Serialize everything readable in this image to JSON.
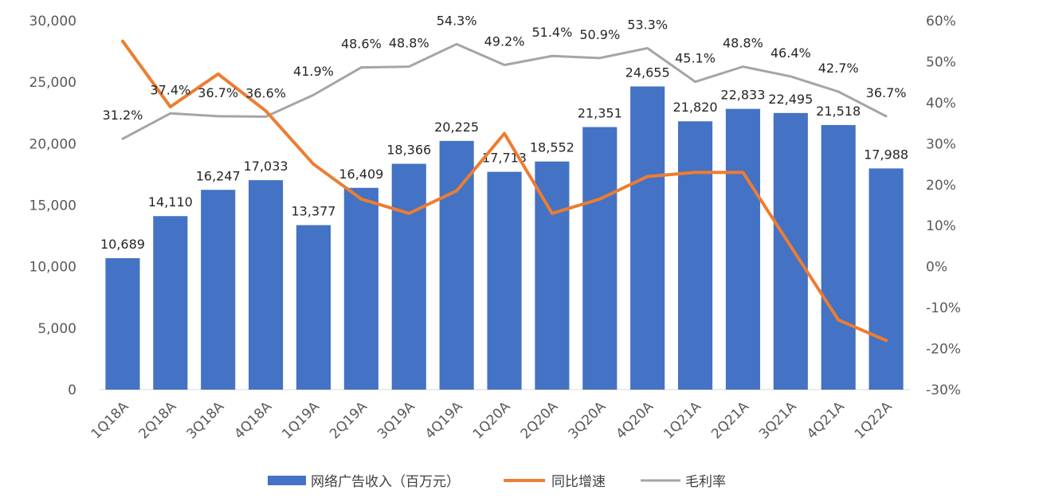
{
  "chart_data": {
    "type": "bar",
    "categories": [
      "1Q18A",
      "2Q18A",
      "3Q18A",
      "4Q18A",
      "1Q19A",
      "2Q19A",
      "3Q19A",
      "4Q19A",
      "1Q20A",
      "2Q20A",
      "3Q20A",
      "4Q20A",
      "1Q21A",
      "2Q21A",
      "3Q21A",
      "4Q21A",
      "1Q22A"
    ],
    "series": [
      {
        "name": "网络广告收入（百万元）",
        "type": "bar",
        "axis": "left",
        "color": "#4472C4",
        "values": [
          10689,
          14110,
          16247,
          17033,
          13377,
          16409,
          18366,
          20225,
          17713,
          18552,
          21351,
          24655,
          21820,
          22833,
          22495,
          21518,
          17988
        ],
        "labels": [
          "10,689",
          "14,110",
          "16,247",
          "17,033",
          "13,377",
          "16,409",
          "18,366",
          "20,225",
          "17,713",
          "18,552",
          "21,351",
          "24,655",
          "21,820",
          "22,833",
          "22,495",
          "21,518",
          "17,988"
        ]
      },
      {
        "name": "同比增速",
        "type": "line",
        "axis": "right",
        "color": "#ED7D31",
        "values": [
          55,
          39,
          47,
          38,
          25,
          16.5,
          13,
          18.5,
          32.5,
          13,
          16.5,
          22,
          23,
          23,
          5,
          -13,
          -18
        ]
      },
      {
        "name": "毛利率",
        "type": "line",
        "axis": "right",
        "color": "#A5A5A5",
        "values": [
          31.2,
          37.4,
          36.7,
          36.6,
          41.9,
          48.6,
          48.8,
          54.3,
          49.2,
          51.4,
          50.9,
          53.3,
          45.1,
          48.8,
          46.4,
          42.7,
          36.7
        ],
        "labels": [
          "31.2%",
          "37.4%",
          "36.7%",
          "36.6%",
          "41.9%",
          "48.6%",
          "48.8%",
          "54.3%",
          "49.2%",
          "51.4%",
          "50.9%",
          "53.3%",
          "45.1%",
          "48.8%",
          "46.4%",
          "42.7%",
          "36.7%"
        ]
      }
    ],
    "y_left": {
      "lim": [
        0,
        30000
      ],
      "ticks": [
        0,
        5000,
        10000,
        15000,
        20000,
        25000,
        30000
      ],
      "tick_labels": [
        "0",
        "5,000",
        "10,000",
        "15,000",
        "20,000",
        "25,000",
        "30,000"
      ]
    },
    "y_right": {
      "lim": [
        -30,
        60
      ],
      "ticks": [
        -30,
        -20,
        -10,
        0,
        10,
        20,
        30,
        40,
        50,
        60
      ],
      "tick_labels": [
        "-30%",
        "-20%",
        "-10%",
        "0%",
        "10%",
        "20%",
        "30%",
        "40%",
        "50%",
        "60%"
      ]
    },
    "grid": false,
    "legend": {
      "position": "bottom",
      "entries": [
        "网络广告收入（百万元）",
        "同比增速",
        "毛利率"
      ]
    }
  }
}
